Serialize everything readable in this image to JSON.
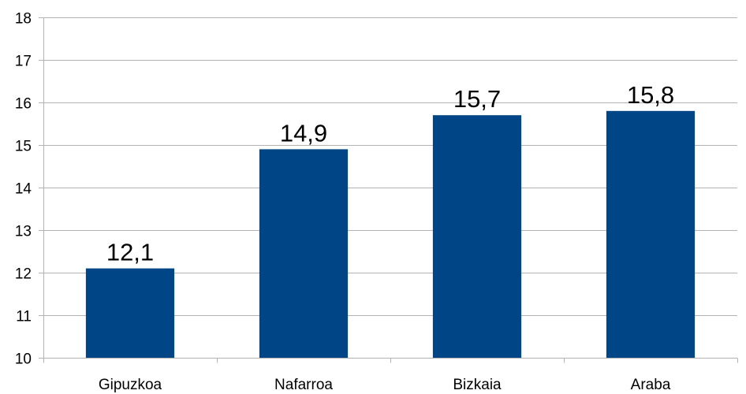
{
  "chart_data": {
    "type": "bar",
    "categories": [
      "Gipuzkoa",
      "Nafarroa",
      "Bizkaia",
      "Araba"
    ],
    "values": [
      12.1,
      14.9,
      15.7,
      15.8
    ],
    "data_labels": [
      "12,1",
      "14,9",
      "15,7",
      "15,8"
    ],
    "ylim": [
      10,
      18
    ],
    "yticks": [
      10,
      11,
      12,
      13,
      14,
      15,
      16,
      17,
      18
    ],
    "ytick_labels": [
      "10",
      "11",
      "12",
      "13",
      "14",
      "15",
      "16",
      "17",
      "18"
    ],
    "grid": true,
    "legend": "none",
    "bar_color": "#004586",
    "grid_color": "#b3b3b3"
  }
}
